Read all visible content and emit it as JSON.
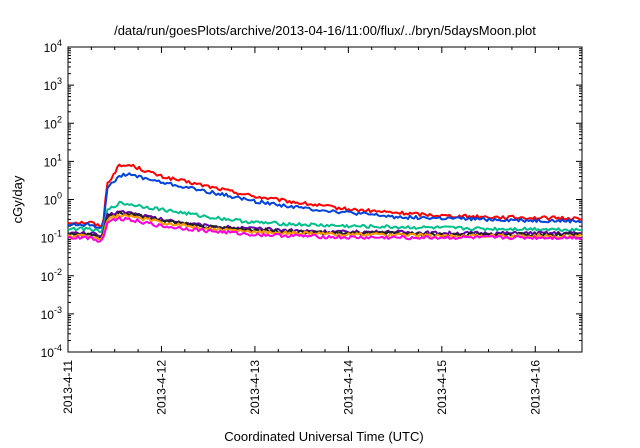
{
  "chart_data": {
    "type": "line",
    "title": "/data/run/goesPlots/archive/2013-04-16/11:00/flux/../bryn/5daysMoon.plot",
    "xlabel": "Coordinated Universal Time (UTC)",
    "ylabel": "cGy/day",
    "yscale": "log",
    "ylim": [
      0.0001,
      10000
    ],
    "xlim": [
      "2013-04-11",
      "2013-04-16 12:00"
    ],
    "grid": false,
    "legend": "none",
    "x_ticks": [
      "2013-4-11",
      "2013-4-12",
      "2013-4-13",
      "2013-4-14",
      "2013-4-15",
      "2013-4-16"
    ],
    "y_ticks": [
      {
        "base": "10",
        "exp": "-4"
      },
      {
        "base": "10",
        "exp": "-3"
      },
      {
        "base": "10",
        "exp": "-2"
      },
      {
        "base": "10",
        "exp": "-1"
      },
      {
        "base": "10",
        "exp": "0"
      },
      {
        "base": "10",
        "exp": "1"
      },
      {
        "base": "10",
        "exp": "2"
      },
      {
        "base": "10",
        "exp": "3"
      },
      {
        "base": "10",
        "exp": "4"
      }
    ],
    "x": [
      "2013-04-11 00:00",
      "2013-04-11 06:00",
      "2013-04-11 08:00",
      "2013-04-11 09:00",
      "2013-04-11 10:00",
      "2013-04-11 13:00",
      "2013-04-11 16:00",
      "2013-04-12 00:00",
      "2013-04-12 12:00",
      "2013-04-13 00:00",
      "2013-04-13 12:00",
      "2013-04-14 00:00",
      "2013-04-14 12:00",
      "2013-04-15 00:00",
      "2013-04-15 12:00",
      "2013-04-16 00:00",
      "2013-04-16 12:00"
    ],
    "series": [
      {
        "color": "#ff0000",
        "values": [
          0.25,
          0.25,
          0.2,
          0.23,
          2.5,
          7.5,
          8,
          4,
          2.2,
          1.2,
          0.8,
          0.55,
          0.45,
          0.38,
          0.35,
          0.33,
          0.32
        ]
      },
      {
        "color": "#0044dd",
        "values": [
          0.22,
          0.22,
          0.18,
          0.21,
          1.8,
          4.2,
          4.5,
          2.8,
          1.6,
          0.9,
          0.6,
          0.45,
          0.35,
          0.32,
          0.3,
          0.28,
          0.27
        ]
      },
      {
        "color": "#00c08a",
        "values": [
          0.17,
          0.17,
          0.14,
          0.16,
          0.5,
          0.8,
          0.75,
          0.55,
          0.35,
          0.25,
          0.22,
          0.2,
          0.19,
          0.18,
          0.17,
          0.17,
          0.16
        ]
      },
      {
        "color": "#6600aa",
        "values": [
          0.13,
          0.13,
          0.11,
          0.12,
          0.38,
          0.48,
          0.45,
          0.3,
          0.2,
          0.17,
          0.15,
          0.14,
          0.14,
          0.13,
          0.13,
          0.13,
          0.13
        ]
      },
      {
        "color": "#222222",
        "values": [
          0.12,
          0.12,
          0.1,
          0.11,
          0.34,
          0.44,
          0.42,
          0.28,
          0.19,
          0.16,
          0.14,
          0.13,
          0.13,
          0.12,
          0.12,
          0.12,
          0.12
        ]
      },
      {
        "color": "#ff9900",
        "values": [
          0.11,
          0.11,
          0.09,
          0.1,
          0.3,
          0.38,
          0.36,
          0.25,
          0.17,
          0.14,
          0.13,
          0.12,
          0.12,
          0.11,
          0.11,
          0.11,
          0.11
        ]
      },
      {
        "color": "#ff00dd",
        "values": [
          0.1,
          0.1,
          0.08,
          0.09,
          0.26,
          0.32,
          0.3,
          0.2,
          0.15,
          0.12,
          0.11,
          0.1,
          0.1,
          0.1,
          0.1,
          0.1,
          0.1
        ]
      }
    ]
  }
}
